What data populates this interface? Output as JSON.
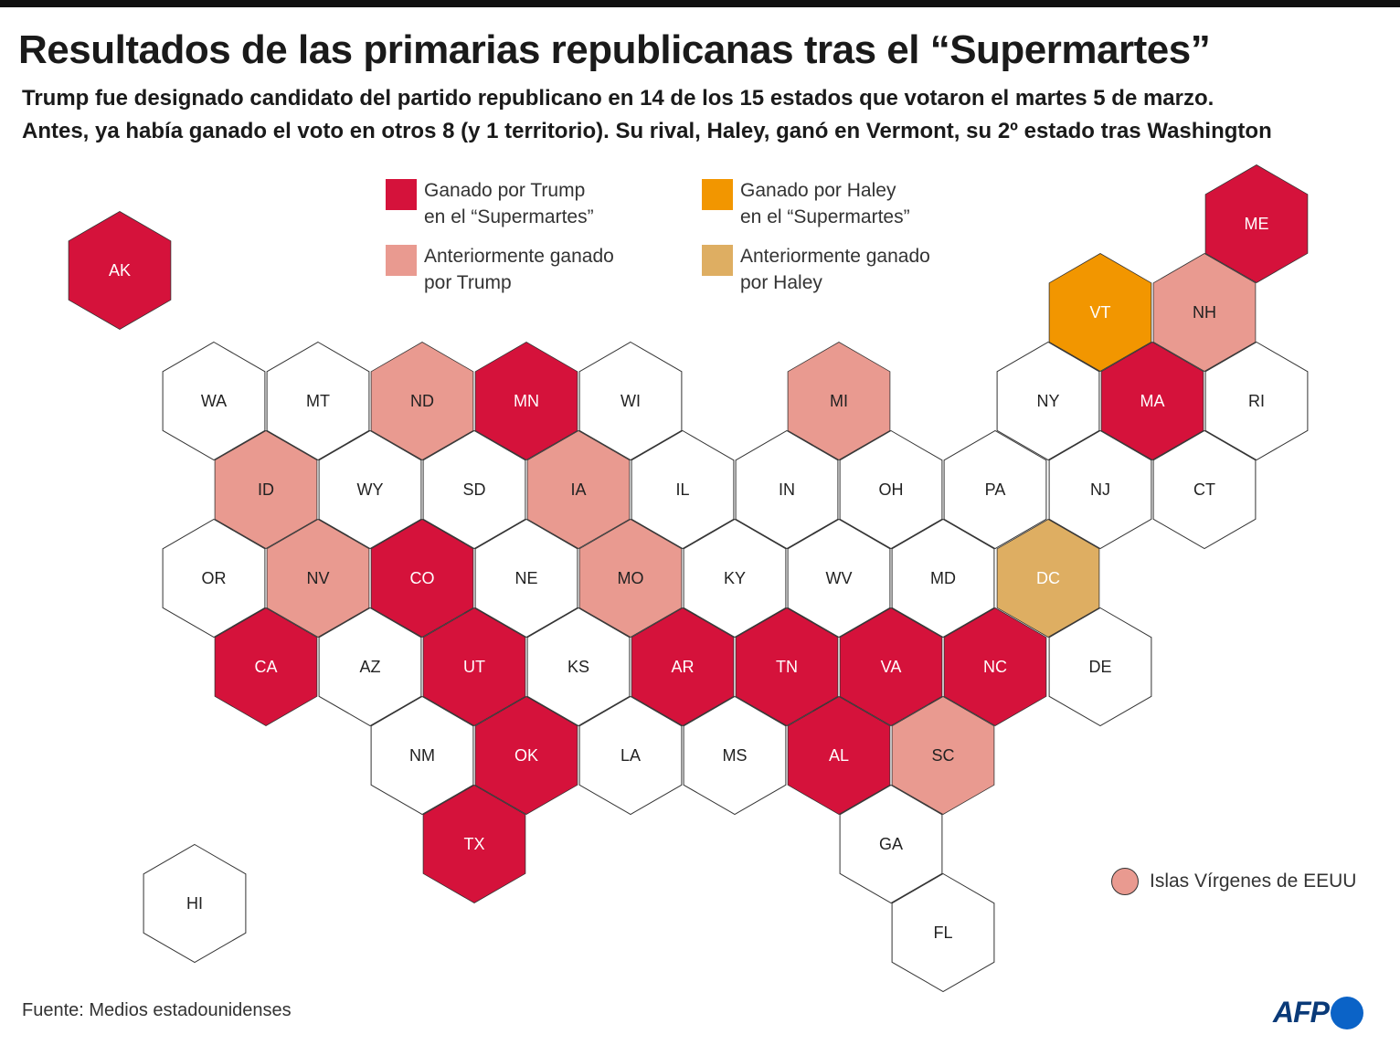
{
  "title": "Resultados de las primarias republicanas tras el “Supermartes”",
  "subtitle": [
    "Trump fue designado candidato del partido republicano en 14 de los 15 estados que votaron el martes 5 de marzo.",
    "Antes, ya había ganado el voto en otros 8 (y 1 territorio). Su rival, Haley, ganó en Vermont, su 2º estado tras Washington"
  ],
  "colors": {
    "trump_super": "#d5123b",
    "trump_prev": "#e99a90",
    "haley_super": "#f29600",
    "haley_prev": "#deae62",
    "none": "#ffffff",
    "stroke": "#333333"
  },
  "legend": [
    {
      "key": "trump_super",
      "lines": [
        "Ganado por Trump",
        "en el “Supermartes”"
      ]
    },
    {
      "key": "haley_super",
      "lines": [
        "Ganado por  Haley",
        "en el “Supermartes”"
      ]
    },
    {
      "key": "trump_prev",
      "lines": [
        "Anteriormente ganado",
        "por Trump"
      ]
    },
    {
      "key": "haley_prev",
      "lines": [
        "Anteriormente ganado",
        "por Haley"
      ]
    }
  ],
  "states": [
    {
      "abbr": "AK",
      "status": "trump_super"
    },
    {
      "abbr": "ME",
      "status": "trump_super"
    },
    {
      "abbr": "VT",
      "status": "haley_super"
    },
    {
      "abbr": "NH",
      "status": "trump_prev"
    },
    {
      "abbr": "WA",
      "status": "none"
    },
    {
      "abbr": "MT",
      "status": "none"
    },
    {
      "abbr": "ND",
      "status": "trump_prev"
    },
    {
      "abbr": "MN",
      "status": "trump_super"
    },
    {
      "abbr": "WI",
      "status": "none"
    },
    {
      "abbr": "MI",
      "status": "trump_prev"
    },
    {
      "abbr": "NY",
      "status": "none"
    },
    {
      "abbr": "MA",
      "status": "trump_super"
    },
    {
      "abbr": "RI",
      "status": "none"
    },
    {
      "abbr": "ID",
      "status": "trump_prev"
    },
    {
      "abbr": "WY",
      "status": "none"
    },
    {
      "abbr": "SD",
      "status": "none"
    },
    {
      "abbr": "IA",
      "status": "trump_prev"
    },
    {
      "abbr": "IL",
      "status": "none"
    },
    {
      "abbr": "IN",
      "status": "none"
    },
    {
      "abbr": "OH",
      "status": "none"
    },
    {
      "abbr": "PA",
      "status": "none"
    },
    {
      "abbr": "NJ",
      "status": "none"
    },
    {
      "abbr": "CT",
      "status": "none"
    },
    {
      "abbr": "OR",
      "status": "none"
    },
    {
      "abbr": "NV",
      "status": "trump_prev"
    },
    {
      "abbr": "CO",
      "status": "trump_super"
    },
    {
      "abbr": "NE",
      "status": "none"
    },
    {
      "abbr": "MO",
      "status": "trump_prev"
    },
    {
      "abbr": "KY",
      "status": "none"
    },
    {
      "abbr": "WV",
      "status": "none"
    },
    {
      "abbr": "MD",
      "status": "none"
    },
    {
      "abbr": "DC",
      "status": "haley_prev"
    },
    {
      "abbr": "CA",
      "status": "trump_super"
    },
    {
      "abbr": "AZ",
      "status": "none"
    },
    {
      "abbr": "UT",
      "status": "trump_super"
    },
    {
      "abbr": "KS",
      "status": "none"
    },
    {
      "abbr": "AR",
      "status": "trump_super"
    },
    {
      "abbr": "TN",
      "status": "trump_super"
    },
    {
      "abbr": "VA",
      "status": "trump_super"
    },
    {
      "abbr": "NC",
      "status": "trump_super"
    },
    {
      "abbr": "DE",
      "status": "none"
    },
    {
      "abbr": "NM",
      "status": "none"
    },
    {
      "abbr": "OK",
      "status": "trump_super"
    },
    {
      "abbr": "LA",
      "status": "none"
    },
    {
      "abbr": "MS",
      "status": "none"
    },
    {
      "abbr": "AL",
      "status": "trump_super"
    },
    {
      "abbr": "SC",
      "status": "trump_prev"
    },
    {
      "abbr": "TX",
      "status": "trump_super"
    },
    {
      "abbr": "GA",
      "status": "none"
    },
    {
      "abbr": "HI",
      "status": "none"
    },
    {
      "abbr": "FL",
      "status": "none"
    }
  ],
  "territory": {
    "label": "Islas Vírgenes de EEUU",
    "status": "trump_prev"
  },
  "source": "Fuente: Medios estadounidenses",
  "logo": "AFP"
}
